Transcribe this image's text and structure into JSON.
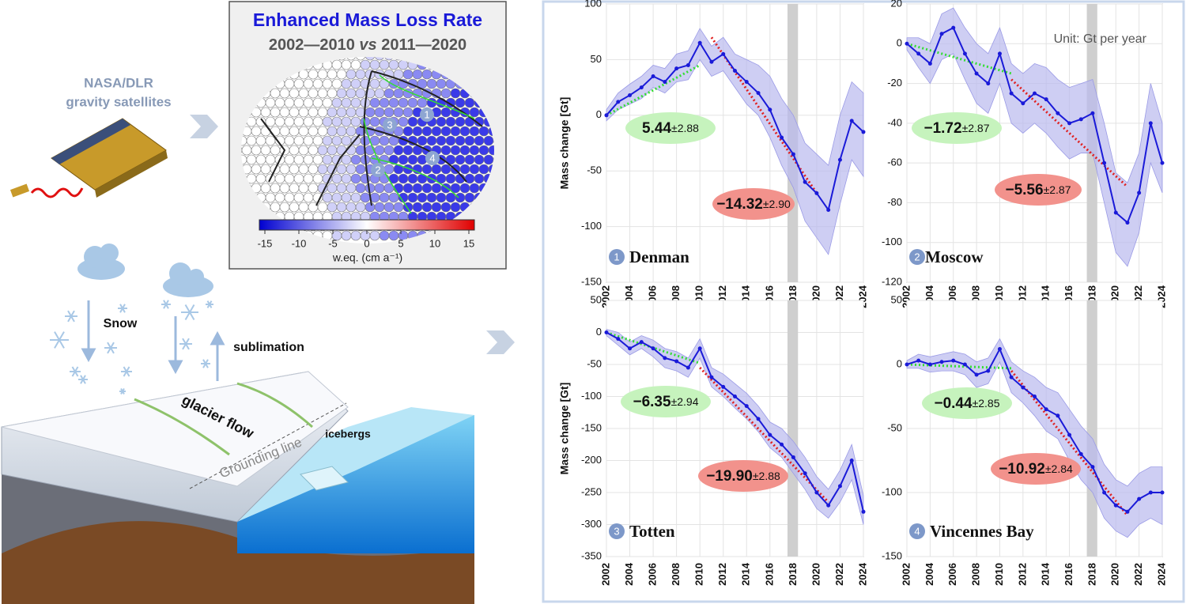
{
  "diagram": {
    "satellite_line1": "NASA/DLR",
    "satellite_line2": "gravity satellites",
    "snow": "Snow",
    "sublimation": "sublimation",
    "glacier_flow": "glacier flow",
    "grounding_line": "Grounding line",
    "icebergs": "icebergs"
  },
  "map": {
    "title": "Enhanced Mass Loss Rate",
    "subtitle_a": "2002—2010 ",
    "subtitle_vs": "vs",
    "subtitle_b": " 2011—2020",
    "regions": [
      "1",
      "2",
      "3",
      "4"
    ],
    "colorbar_ticks": [
      -15,
      -10,
      -5,
      0,
      5,
      10,
      15
    ],
    "colorbar_label": "w.eq. (cm a⁻¹)"
  },
  "chart_data": [
    {
      "type": "line",
      "number": "1",
      "title": "Denman",
      "y_label": "Mass change [Gt]",
      "xlim": [
        2002,
        2024
      ],
      "xticks": [
        2002,
        2004,
        2006,
        2008,
        2010,
        2012,
        2014,
        2016,
        2018,
        2020,
        2022,
        2024
      ],
      "ylim": [
        -150,
        100
      ],
      "yticks": [
        -150,
        -100,
        -50,
        0,
        50,
        100
      ],
      "grid": true,
      "color": "#1a1ad8",
      "band_color": "#b9b9ee",
      "gap": [
        2017.5,
        2018.4
      ],
      "x": [
        2002,
        2003,
        2004,
        2005,
        2006,
        2007,
        2008,
        2009,
        2010,
        2011,
        2012,
        2013,
        2014,
        2015,
        2016,
        2017,
        2018,
        2019,
        2020,
        2021,
        2022,
        2023,
        2024
      ],
      "values": [
        0,
        12,
        18,
        25,
        35,
        30,
        42,
        45,
        65,
        48,
        55,
        40,
        30,
        20,
        5,
        -20,
        -35,
        -60,
        -70,
        -85,
        -40,
        -5,
        -15
      ],
      "lower": [
        -5,
        5,
        10,
        15,
        25,
        20,
        30,
        32,
        50,
        35,
        40,
        25,
        10,
        0,
        -20,
        -45,
        -65,
        -95,
        -110,
        -125,
        -80,
        -40,
        -55
      ],
      "upper": [
        5,
        20,
        28,
        35,
        45,
        42,
        55,
        58,
        78,
        62,
        70,
        55,
        50,
        45,
        35,
        15,
        0,
        -25,
        -35,
        -45,
        0,
        30,
        20
      ],
      "trends": [
        {
          "x": [
            2002,
            2010
          ],
          "values": [
            0,
            45
          ],
          "color": "#33dd33"
        },
        {
          "x": [
            2011,
            2020
          ],
          "values": [
            70,
            -70
          ],
          "color": "#e02020"
        }
      ],
      "rates": [
        {
          "rate": "5.44",
          "error": "±2.88",
          "color": "#c6f3bd"
        },
        {
          "rate": "−14.32",
          "error": "±2.90",
          "color": "#f2928c"
        }
      ]
    },
    {
      "type": "line",
      "number": "2",
      "title": "Moscow",
      "unit": "Unit: Gt per year",
      "xlim": [
        2002,
        2024
      ],
      "xticks": [
        2002,
        2004,
        2006,
        2008,
        2010,
        2012,
        2014,
        2016,
        2018,
        2020,
        2022,
        2024
      ],
      "ylim": [
        -120,
        20
      ],
      "yticks": [
        -120,
        -100,
        -80,
        -60,
        -40,
        -20,
        0,
        20
      ],
      "grid": true,
      "color": "#1a1ad8",
      "band_color": "#b9b9ee",
      "gap": [
        2017.5,
        2018.4
      ],
      "x": [
        2002,
        2003,
        2004,
        2005,
        2006,
        2007,
        2008,
        2009,
        2010,
        2011,
        2012,
        2013,
        2014,
        2015,
        2016,
        2017,
        2018,
        2019,
        2020,
        2021,
        2022,
        2023,
        2024
      ],
      "values": [
        0,
        -5,
        -10,
        5,
        8,
        -5,
        -15,
        -20,
        -5,
        -25,
        -30,
        -25,
        -28,
        -35,
        -40,
        -38,
        -35,
        -60,
        -85,
        -90,
        -75,
        -40,
        -60
      ],
      "lower": [
        -3,
        -12,
        -20,
        -8,
        -5,
        -18,
        -30,
        -35,
        -20,
        -40,
        -45,
        -40,
        -45,
        -52,
        -58,
        -55,
        -55,
        -80,
        -105,
        -112,
        -95,
        -60,
        -75
      ],
      "upper": [
        3,
        3,
        0,
        15,
        18,
        8,
        0,
        -5,
        8,
        -10,
        -15,
        -10,
        -12,
        -18,
        -22,
        -20,
        -18,
        -40,
        -65,
        -70,
        -55,
        -20,
        -40
      ],
      "trends": [
        {
          "x": [
            2002,
            2011
          ],
          "values": [
            0,
            -15
          ],
          "color": "#33dd33"
        },
        {
          "x": [
            2011,
            2021
          ],
          "values": [
            -18,
            -72
          ],
          "color": "#e02020"
        }
      ],
      "rates": [
        {
          "rate": "−1.72",
          "error": "±2.87",
          "color": "#c6f3bd"
        },
        {
          "rate": "−5.56",
          "error": "±2.87",
          "color": "#f2928c"
        }
      ]
    },
    {
      "type": "line",
      "number": "3",
      "title": "Totten",
      "y_label": "Mass change [Gt]",
      "xlim": [
        2002,
        2024
      ],
      "xticks": [
        2002,
        2004,
        2006,
        2008,
        2010,
        2012,
        2014,
        2016,
        2018,
        2020,
        2022,
        2024
      ],
      "ylim": [
        -350,
        50
      ],
      "yticks": [
        -350,
        -300,
        -250,
        -200,
        -150,
        -100,
        -50,
        0,
        50
      ],
      "grid": true,
      "color": "#1a1ad8",
      "band_color": "#b9b9ee",
      "gap": [
        2017.5,
        2018.4
      ],
      "x": [
        2002,
        2003,
        2004,
        2005,
        2006,
        2007,
        2008,
        2009,
        2010,
        2011,
        2012,
        2013,
        2014,
        2015,
        2016,
        2017,
        2018,
        2019,
        2020,
        2021,
        2022,
        2023,
        2024
      ],
      "values": [
        0,
        -10,
        -25,
        -15,
        -25,
        -40,
        -45,
        -55,
        -25,
        -70,
        -85,
        -100,
        -115,
        -135,
        -160,
        -175,
        -195,
        -220,
        -250,
        -270,
        -240,
        -200,
        -280
      ],
      "lower": [
        -5,
        -20,
        -35,
        -25,
        -38,
        -55,
        -60,
        -70,
        -40,
        -85,
        -100,
        -118,
        -135,
        -155,
        -180,
        -195,
        -220,
        -245,
        -275,
        -290,
        -265,
        -230,
        -300
      ],
      "upper": [
        5,
        0,
        -15,
        -5,
        -12,
        -25,
        -30,
        -40,
        -10,
        -55,
        -65,
        -80,
        -95,
        -115,
        -140,
        -150,
        -170,
        -195,
        -225,
        -245,
        -215,
        -175,
        -255
      ],
      "trends": [
        {
          "x": [
            2002,
            2010
          ],
          "values": [
            0,
            -48
          ],
          "color": "#33dd33"
        },
        {
          "x": [
            2010,
            2021
          ],
          "values": [
            -55,
            -265
          ],
          "color": "#e02020"
        }
      ],
      "rates": [
        {
          "rate": "−6.35",
          "error": "±2.94",
          "color": "#c6f3bd"
        },
        {
          "rate": "−19.90",
          "error": "±2.88",
          "color": "#f2928c"
        }
      ]
    },
    {
      "type": "line",
      "number": "4",
      "title": "Vincennes Bay",
      "xlim": [
        2002,
        2024
      ],
      "xticks": [
        2002,
        2004,
        2006,
        2008,
        2010,
        2012,
        2014,
        2016,
        2018,
        2020,
        2022,
        2024
      ],
      "ylim": [
        -150,
        50
      ],
      "yticks": [
        -150,
        -100,
        -50,
        0,
        50
      ],
      "grid": true,
      "color": "#1a1ad8",
      "band_color": "#b9b9ee",
      "gap": [
        2017.5,
        2018.4
      ],
      "x": [
        2002,
        2003,
        2004,
        2005,
        2006,
        2007,
        2008,
        2009,
        2010,
        2011,
        2012,
        2013,
        2014,
        2015,
        2016,
        2017,
        2018,
        2019,
        2020,
        2021,
        2022,
        2023,
        2024
      ],
      "values": [
        0,
        3,
        0,
        2,
        3,
        0,
        -8,
        -5,
        12,
        -10,
        -18,
        -25,
        -35,
        -40,
        -55,
        -70,
        -80,
        -100,
        -110,
        -115,
        -105,
        -100,
        -100
      ],
      "lower": [
        -3,
        -3,
        -6,
        -5,
        -5,
        -8,
        -18,
        -15,
        2,
        -22,
        -30,
        -40,
        -52,
        -58,
        -75,
        -90,
        -100,
        -120,
        -130,
        -135,
        -125,
        -120,
        -125
      ],
      "upper": [
        3,
        8,
        6,
        8,
        10,
        8,
        2,
        5,
        20,
        2,
        -5,
        -10,
        -18,
        -22,
        -35,
        -48,
        -58,
        -78,
        -90,
        -95,
        -85,
        -80,
        -80
      ],
      "trends": [
        {
          "x": [
            2002,
            2011
          ],
          "values": [
            0,
            -3
          ],
          "color": "#33dd33"
        },
        {
          "x": [
            2011,
            2021
          ],
          "values": [
            -5,
            -118
          ],
          "color": "#e02020"
        }
      ],
      "rates": [
        {
          "rate": "−0.44",
          "error": "±2.85",
          "color": "#c6f3bd"
        },
        {
          "rate": "−10.92",
          "error": "±2.84",
          "color": "#f2928c"
        }
      ]
    }
  ]
}
